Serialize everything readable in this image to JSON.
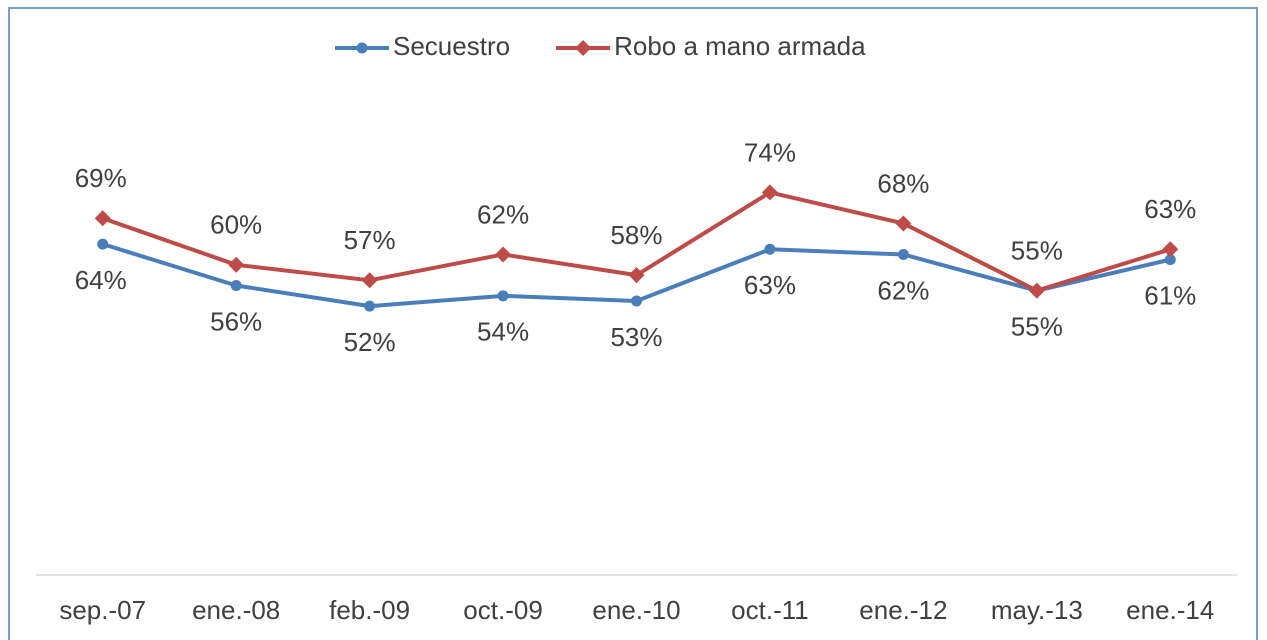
{
  "chart_data": {
    "type": "line",
    "categories": [
      "sep.-07",
      "ene.-08",
      "feb.-09",
      "oct.-09",
      "ene.-10",
      "oct.-11",
      "ene.-12",
      "may.-13",
      "ene.-14"
    ],
    "series": [
      {
        "name": "Secuestro",
        "color": "#4a7ebb",
        "marker": "circle",
        "values": [
          64,
          56,
          52,
          54,
          53,
          63,
          62,
          55,
          61
        ],
        "value_labels": [
          "64%",
          "56%",
          "52%",
          "54%",
          "53%",
          "63%",
          "62%",
          "55%",
          "61%"
        ]
      },
      {
        "name": "Robo a mano armada",
        "color": "#be4b48",
        "marker": "diamond",
        "values": [
          69,
          60,
          57,
          62,
          58,
          74,
          68,
          55,
          63
        ],
        "value_labels": [
          "69%",
          "60%",
          "57%",
          "62%",
          "58%",
          "74%",
          "68%",
          "55%",
          "63%"
        ]
      }
    ],
    "ylim": [
      0,
      100
    ],
    "legend": "top"
  }
}
